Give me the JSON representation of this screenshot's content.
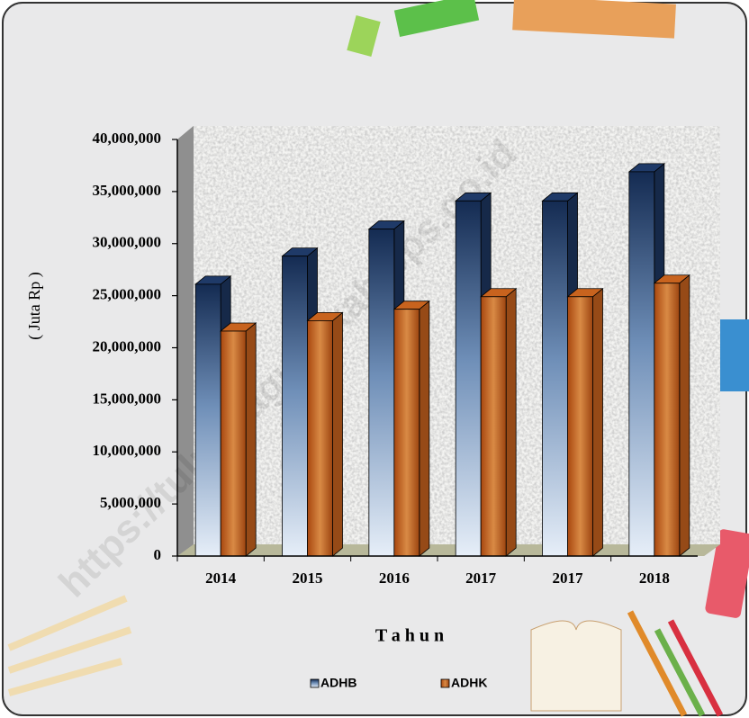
{
  "chart_data": {
    "type": "bar3d",
    "watermark": "https://tulungagungkab.bps.go.id",
    "y_label": "( Juta Rp )",
    "x_label": "T a h u n",
    "categories": [
      "2014",
      "2015",
      "2016",
      "2017",
      "2017",
      "2018"
    ],
    "series": [
      {
        "name": "ADHB",
        "color": "#1f3a68",
        "values": [
          26100000,
          28800000,
          31400000,
          34100000,
          34100000,
          36900000
        ]
      },
      {
        "name": "ADHK",
        "color": "#c8631e",
        "values": [
          21600000,
          22600000,
          23700000,
          24900000,
          24900000,
          26200000
        ]
      }
    ],
    "ylim": [
      0,
      40000000
    ],
    "yticks": [
      0,
      {
        "value": 5000000,
        "label": "5,000,000"
      },
      {
        "value": 10000000,
        "label": "10,000,000"
      },
      {
        "value": 15000000,
        "label": "15,000,000"
      },
      {
        "value": 20000000,
        "label": "20,000,000"
      },
      {
        "value": 25000000,
        "label": "25,000,000"
      },
      {
        "value": 30000000,
        "label": "30,000,000"
      },
      {
        "value": 35000000,
        "label": "35,000,000"
      },
      {
        "value": 40000000,
        "label": "40,000,000"
      }
    ],
    "legend_position": "bottom"
  }
}
